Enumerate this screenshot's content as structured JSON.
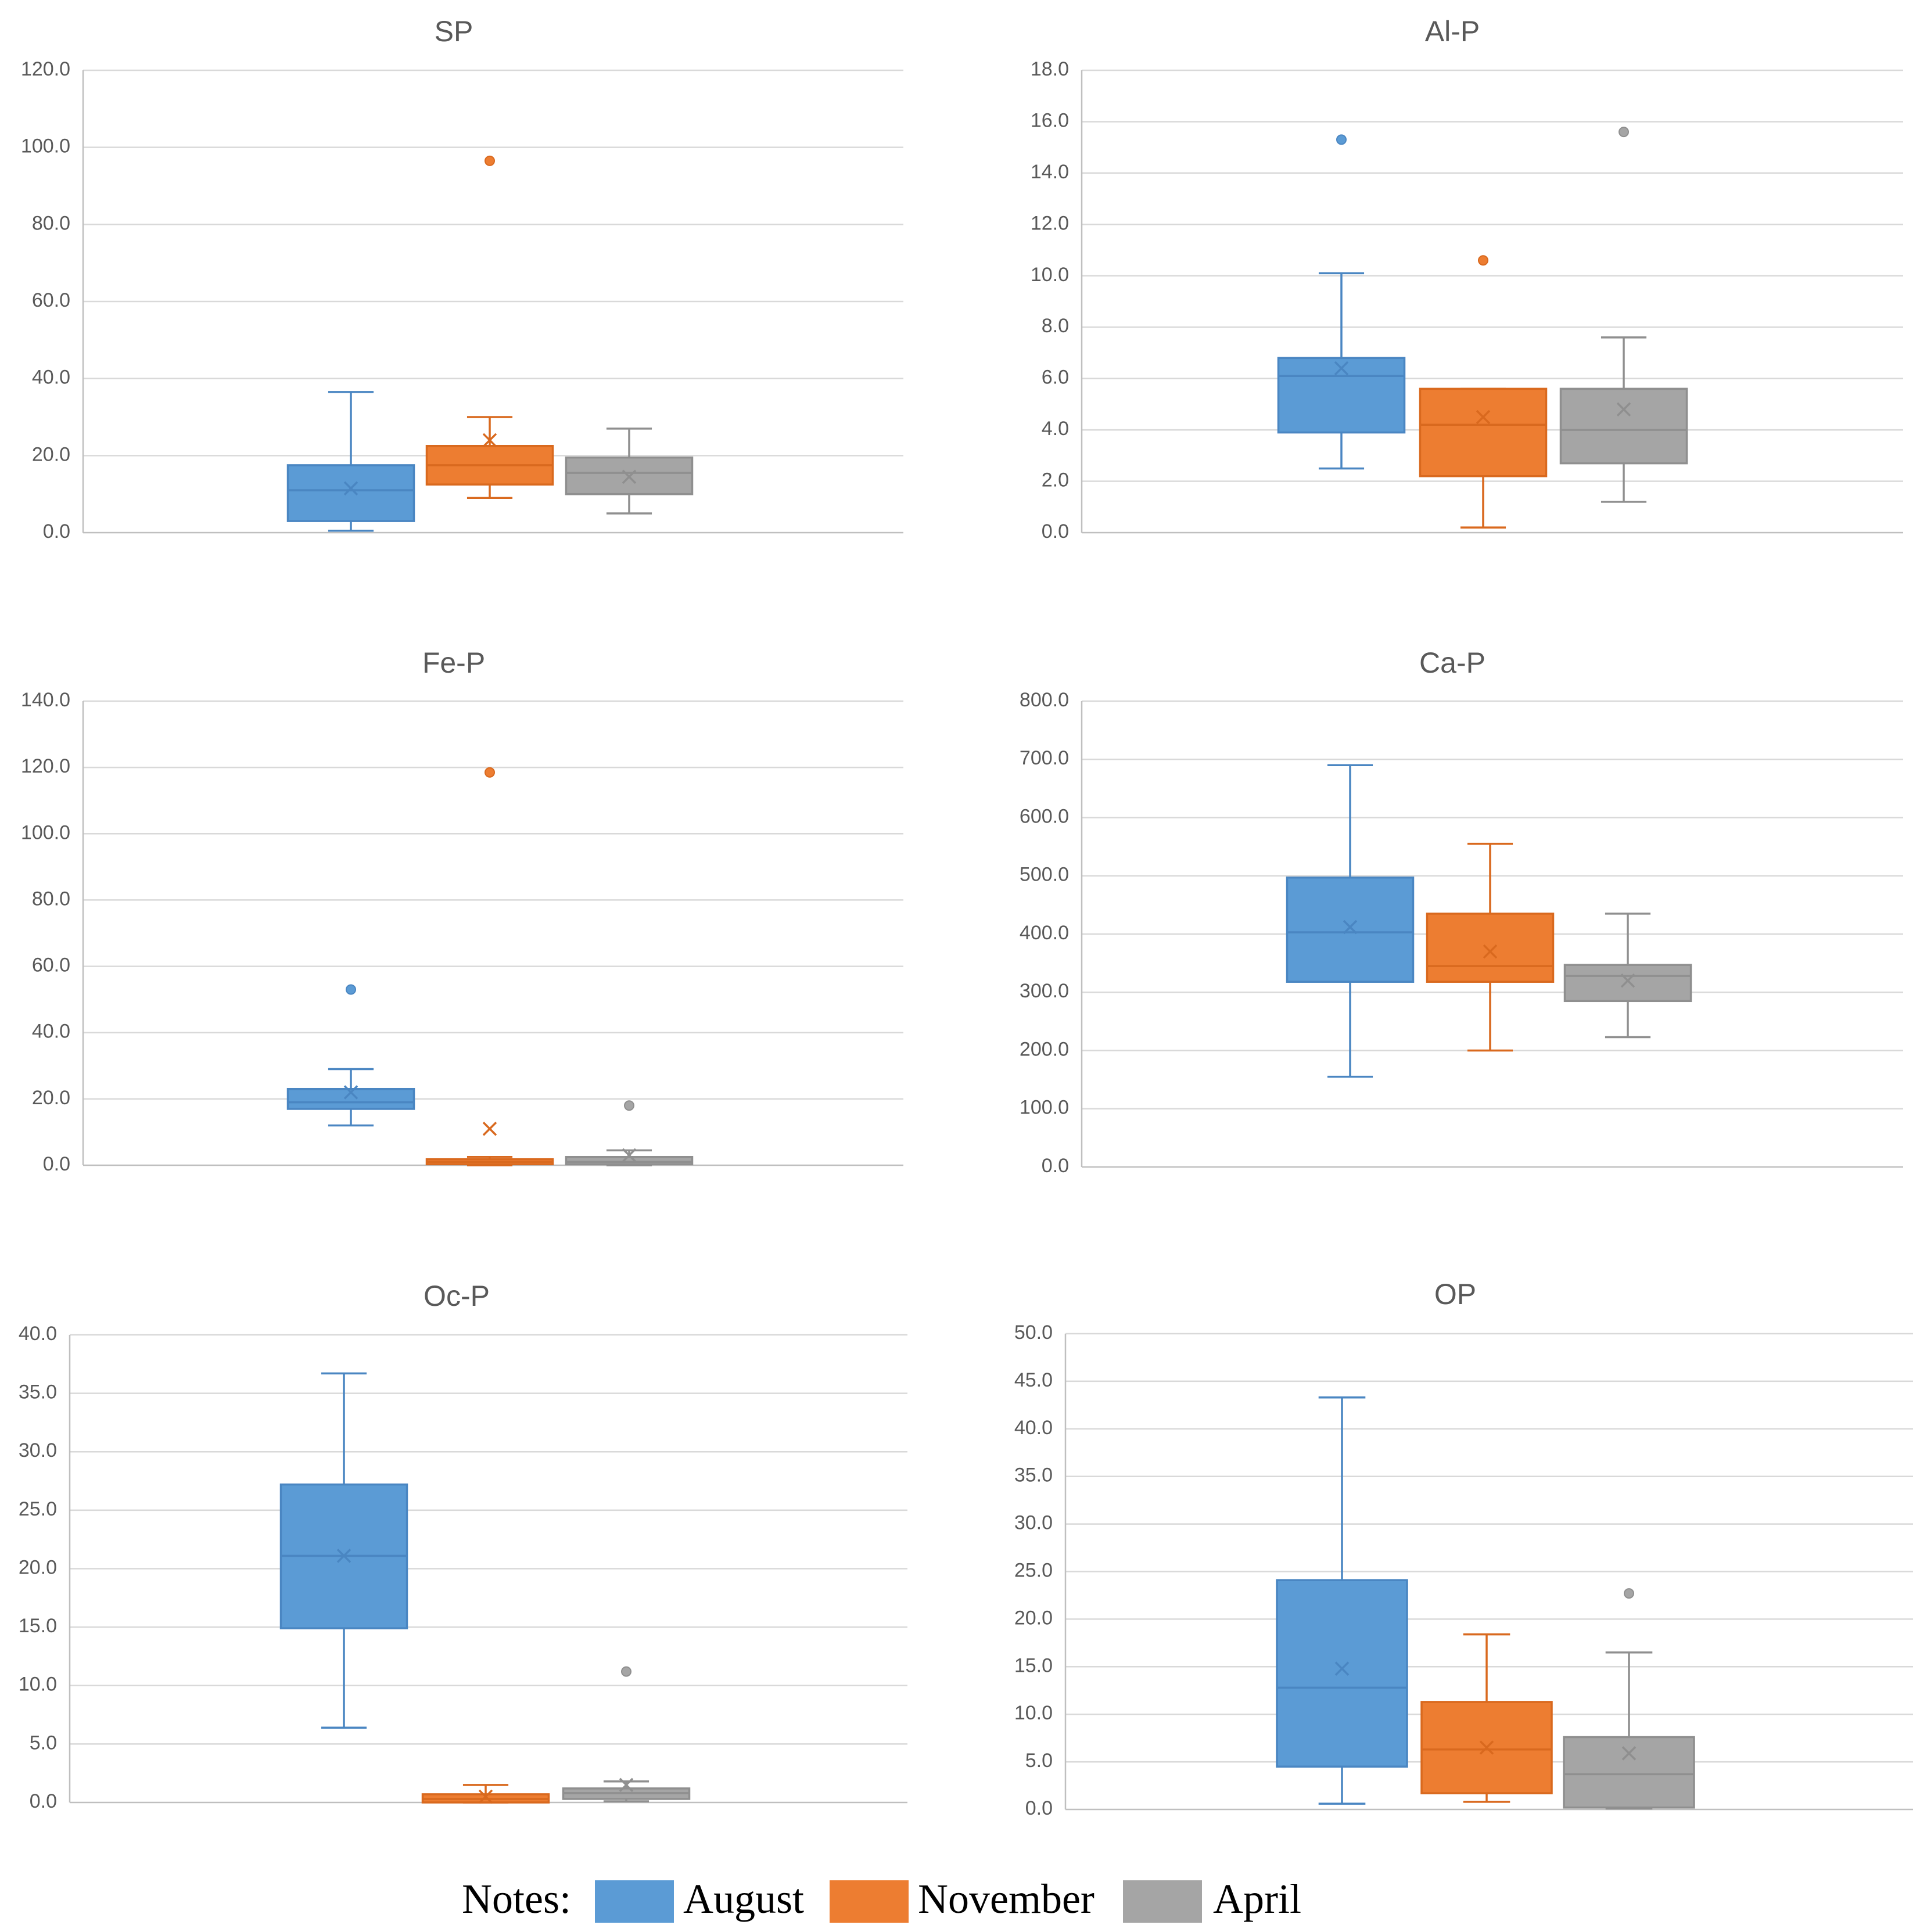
{
  "legend": {
    "label": "Notes:",
    "items": [
      {
        "name": "August",
        "color": "#5b9bd5",
        "stroke": "#4a86c2"
      },
      {
        "name": "November",
        "color": "#ed7d31",
        "stroke": "#d9691e"
      },
      {
        "name": "April",
        "color": "#a5a5a5",
        "stroke": "#8f8f8f"
      }
    ]
  },
  "chart_data": [
    {
      "type": "boxplot",
      "title": "SP",
      "ylim": [
        0,
        120
      ],
      "yticks": [
        "0.0",
        "20.0",
        "40.0",
        "60.0",
        "80.0",
        "100.0",
        "120.0"
      ],
      "series": [
        {
          "name": "August",
          "min": 0.5,
          "q1": 3.0,
          "median": 11.0,
          "q3": 17.5,
          "max": 36.5,
          "mean": 11.5,
          "outliers": []
        },
        {
          "name": "November",
          "min": 9.0,
          "q1": 12.5,
          "median": 17.5,
          "q3": 22.5,
          "max": 30.0,
          "mean": 24.0,
          "outliers": [
            96.5
          ]
        },
        {
          "name": "April",
          "min": 5.0,
          "q1": 10.0,
          "median": 15.5,
          "q3": 19.5,
          "max": 27.0,
          "mean": 14.5,
          "outliers": []
        }
      ]
    },
    {
      "type": "boxplot",
      "title": "Al-P",
      "ylim": [
        0,
        18
      ],
      "yticks": [
        "0.0",
        "2.0",
        "4.0",
        "6.0",
        "8.0",
        "10.0",
        "12.0",
        "14.0",
        "16.0",
        "18.0"
      ],
      "series": [
        {
          "name": "August",
          "min": 2.5,
          "q1": 3.9,
          "median": 6.1,
          "q3": 6.8,
          "max": 10.1,
          "mean": 6.4,
          "outliers": [
            15.3
          ]
        },
        {
          "name": "November",
          "min": 0.2,
          "q1": 2.2,
          "median": 4.2,
          "q3": 5.6,
          "max": 5.6,
          "mean": 4.5,
          "outliers": [
            10.6
          ]
        },
        {
          "name": "April",
          "min": 1.2,
          "q1": 2.7,
          "median": 4.0,
          "q3": 5.6,
          "max": 7.6,
          "mean": 4.8,
          "outliers": [
            15.6
          ]
        }
      ]
    },
    {
      "type": "boxplot",
      "title": "Fe-P",
      "ylim": [
        0,
        140
      ],
      "yticks": [
        "0.0",
        "20.0",
        "40.0",
        "60.0",
        "80.0",
        "100.0",
        "120.0",
        "140.0"
      ],
      "series": [
        {
          "name": "August",
          "min": 12.0,
          "q1": 17.0,
          "median": 19.0,
          "q3": 23.0,
          "max": 29.0,
          "mean": 22.0,
          "outliers": [
            53.0
          ]
        },
        {
          "name": "November",
          "min": 0.0,
          "q1": 0.3,
          "median": 1.0,
          "q3": 1.8,
          "max": 2.5,
          "mean": 11.0,
          "outliers": [
            118.5
          ]
        },
        {
          "name": "April",
          "min": 0.0,
          "q1": 0.3,
          "median": 1.0,
          "q3": 2.5,
          "max": 4.5,
          "mean": 3.0,
          "outliers": [
            18.0
          ]
        }
      ]
    },
    {
      "type": "boxplot",
      "title": "Ca-P",
      "ylim": [
        0,
        800
      ],
      "yticks": [
        "0.0",
        "100.0",
        "200.0",
        "300.0",
        "400.0",
        "500.0",
        "600.0",
        "700.0",
        "800.0"
      ],
      "series": [
        {
          "name": "August",
          "min": 155,
          "q1": 318,
          "median": 403,
          "q3": 497,
          "max": 690,
          "mean": 412,
          "outliers": []
        },
        {
          "name": "November",
          "min": 200,
          "q1": 318,
          "median": 345,
          "q3": 435,
          "max": 555,
          "mean": 370,
          "outliers": []
        },
        {
          "name": "April",
          "min": 223,
          "q1": 285,
          "median": 328,
          "q3": 347,
          "max": 435,
          "mean": 320,
          "outliers": []
        }
      ]
    },
    {
      "type": "boxplot",
      "title": "Oc-P",
      "ylim": [
        0,
        40
      ],
      "yticks": [
        "0.0",
        "5.0",
        "10.0",
        "15.0",
        "20.0",
        "25.0",
        "30.0",
        "35.0",
        "40.0"
      ],
      "series": [
        {
          "name": "August",
          "min": 6.4,
          "q1": 14.9,
          "median": 21.1,
          "q3": 27.2,
          "max": 36.7,
          "mean": 21.1,
          "outliers": []
        },
        {
          "name": "November",
          "min": 0.0,
          "q1": 0.0,
          "median": 0.3,
          "q3": 0.7,
          "max": 1.5,
          "mean": 0.5,
          "outliers": []
        },
        {
          "name": "April",
          "min": 0.1,
          "q1": 0.3,
          "median": 0.8,
          "q3": 1.2,
          "max": 1.8,
          "mean": 1.5,
          "outliers": [
            11.2
          ]
        }
      ]
    },
    {
      "type": "boxplot",
      "title": "OP",
      "ylim": [
        0,
        50
      ],
      "yticks": [
        "0.0",
        "5.0",
        "10.0",
        "15.0",
        "20.0",
        "25.0",
        "30.0",
        "35.0",
        "40.0",
        "45.0",
        "50.0"
      ],
      "series": [
        {
          "name": "August",
          "min": 0.6,
          "q1": 4.5,
          "median": 12.8,
          "q3": 24.1,
          "max": 43.3,
          "mean": 14.8,
          "outliers": []
        },
        {
          "name": "November",
          "min": 0.8,
          "q1": 1.7,
          "median": 6.3,
          "q3": 11.3,
          "max": 18.4,
          "mean": 6.5,
          "outliers": []
        },
        {
          "name": "April",
          "min": 0.1,
          "q1": 0.2,
          "median": 3.7,
          "q3": 7.6,
          "max": 16.5,
          "mean": 5.9,
          "outliers": [
            22.7
          ]
        }
      ]
    }
  ]
}
